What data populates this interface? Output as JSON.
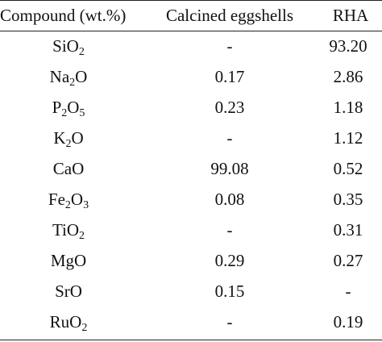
{
  "table": {
    "headers": [
      "Compound (wt.%)",
      "Calcined eggshells",
      "RHA"
    ],
    "rows": [
      {
        "base": "Si",
        "sub1": "",
        "mid": "O",
        "sub2": "2",
        "tail": "",
        "eggshells": "-",
        "rha": "93.20"
      },
      {
        "base": "Na",
        "sub1": "2",
        "mid": "O",
        "sub2": "",
        "tail": "",
        "eggshells": "0.17",
        "rha": "2.86"
      },
      {
        "base": "P",
        "sub1": "2",
        "mid": "O",
        "sub2": "5",
        "tail": "",
        "eggshells": "0.23",
        "rha": "1.18"
      },
      {
        "base": "K",
        "sub1": "2",
        "mid": "O",
        "sub2": "",
        "tail": "",
        "eggshells": "-",
        "rha": "1.12"
      },
      {
        "base": "CaO",
        "sub1": "",
        "mid": "",
        "sub2": "",
        "tail": "",
        "eggshells": "99.08",
        "rha": "0.52"
      },
      {
        "base": "Fe",
        "sub1": "2",
        "mid": "O",
        "sub2": "3",
        "tail": "",
        "eggshells": "0.08",
        "rha": "0.35"
      },
      {
        "base": "Ti",
        "sub1": "",
        "mid": "O",
        "sub2": "2",
        "tail": "",
        "eggshells": "-",
        "rha": "0.31"
      },
      {
        "base": "MgO",
        "sub1": "",
        "mid": "",
        "sub2": "",
        "tail": "",
        "eggshells": "0.29",
        "rha": "0.27"
      },
      {
        "base": "SrO",
        "sub1": "",
        "mid": "",
        "sub2": "",
        "tail": "",
        "eggshells": "0.15",
        "rha": "-"
      },
      {
        "base": "Ru",
        "sub1": "",
        "mid": "O",
        "sub2": "2",
        "tail": "",
        "eggshells": "-",
        "rha": "0.19"
      }
    ]
  }
}
